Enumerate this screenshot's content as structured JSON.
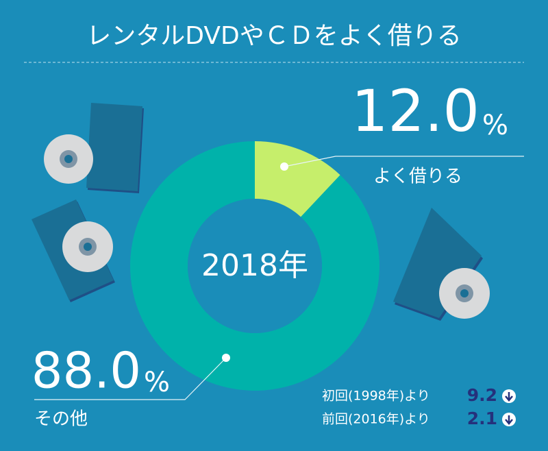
{
  "chart_data": {
    "type": "donut",
    "title": "レンタルDVDやＣＤをよく借りる",
    "center_label": "2018年",
    "categories": [
      "よく借りる",
      "その他"
    ],
    "values": [
      12.0,
      88.0
    ],
    "value_labels": [
      "12.0",
      "88.0"
    ],
    "unit": "%",
    "colors": [
      "#c6ee6b",
      "#00b2aa"
    ]
  },
  "comparisons": [
    {
      "label": "初回(1998年)より",
      "value": 9.2
    },
    {
      "label": "前回(2016年)より",
      "value": 2.1
    }
  ]
}
